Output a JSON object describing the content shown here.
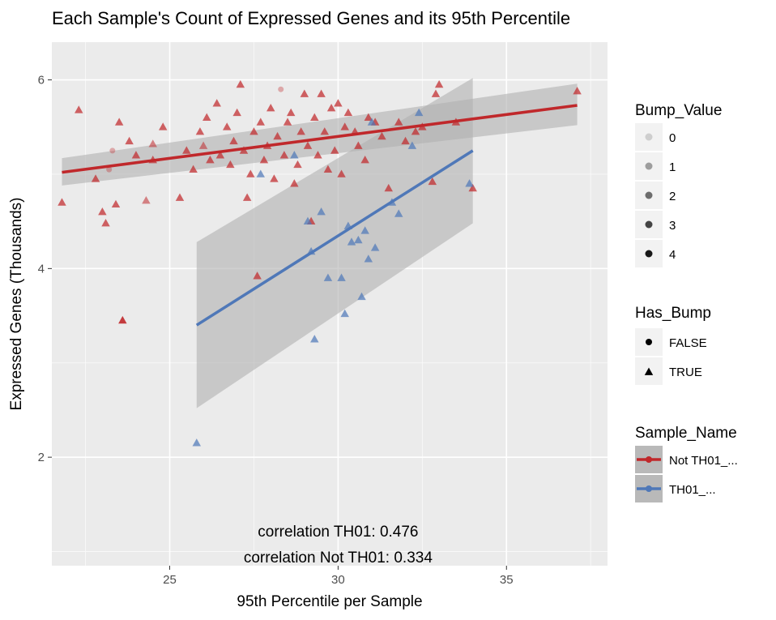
{
  "chart_data": {
    "type": "scatter",
    "title": "Each Sample's Count of Expressed Genes and its 95th Percentile",
    "xlabel": "95th Percentile per Sample",
    "ylabel": "Expressed Genes (Thousands)",
    "xlim": [
      21.5,
      38.0
    ],
    "ylim": [
      0.85,
      6.4
    ],
    "x_ticks": [
      25,
      30,
      35
    ],
    "y_ticks": [
      2,
      4,
      6
    ],
    "grid": true,
    "background": "#ebebeb",
    "legend_position": "right",
    "annotations": [
      "correlation TH01: 0.476",
      "correlation Not TH01: 0.334"
    ],
    "legends": {
      "bump_value": {
        "title": "Bump_Value",
        "items": [
          "0",
          "1",
          "2",
          "3",
          "4"
        ]
      },
      "has_bump": {
        "title": "Has_Bump",
        "items": [
          "FALSE",
          "TRUE"
        ]
      },
      "sample_name": {
        "title": "Sample_Name",
        "items": [
          "Not TH01_...",
          "TH01_..."
        ]
      }
    },
    "colors": {
      "not_th01": "#c0282b",
      "th01": "#4f78b8",
      "ribbon": "#b0b0b0"
    },
    "series": [
      {
        "name": "Not TH01_...",
        "color": "#c0282b",
        "fit": {
          "x": [
            21.8,
            37.1
          ],
          "y": [
            5.02,
            5.73
          ],
          "ci_lower": [
            4.88,
            5.52
          ],
          "ci_upper": [
            5.17,
            5.96
          ]
        },
        "points": [
          [
            21.8,
            4.7,
            "T",
            3
          ],
          [
            22.3,
            5.68,
            "T",
            3
          ],
          [
            22.8,
            4.95,
            "T",
            3
          ],
          [
            23.0,
            4.6,
            "T",
            3
          ],
          [
            23.1,
            4.48,
            "T",
            3
          ],
          [
            23.2,
            5.05,
            "C",
            1
          ],
          [
            23.3,
            5.25,
            "C",
            1
          ],
          [
            23.4,
            4.68,
            "T",
            3
          ],
          [
            23.5,
            5.55,
            "T",
            3
          ],
          [
            23.6,
            3.45,
            "T",
            4
          ],
          [
            23.8,
            5.35,
            "T",
            3
          ],
          [
            24.0,
            5.2,
            "T",
            3
          ],
          [
            24.3,
            4.72,
            "T",
            2
          ],
          [
            24.5,
            5.15,
            "T",
            3
          ],
          [
            24.5,
            5.32,
            "T",
            2
          ],
          [
            24.8,
            5.5,
            "T",
            3
          ],
          [
            25.3,
            4.75,
            "T",
            3
          ],
          [
            25.5,
            5.25,
            "T",
            3
          ],
          [
            25.7,
            5.05,
            "T",
            3
          ],
          [
            25.9,
            5.45,
            "T",
            3
          ],
          [
            26.0,
            5.3,
            "T",
            2
          ],
          [
            26.1,
            5.6,
            "T",
            3
          ],
          [
            26.2,
            5.15,
            "T",
            3
          ],
          [
            26.4,
            5.75,
            "T",
            3
          ],
          [
            26.5,
            5.2,
            "T",
            3
          ],
          [
            26.7,
            5.5,
            "T",
            3
          ],
          [
            26.8,
            5.1,
            "T",
            3
          ],
          [
            26.9,
            5.35,
            "T",
            3
          ],
          [
            27.0,
            5.65,
            "T",
            3
          ],
          [
            27.1,
            5.95,
            "T",
            3
          ],
          [
            27.2,
            5.25,
            "T",
            3
          ],
          [
            27.3,
            4.75,
            "T",
            3
          ],
          [
            27.4,
            5.0,
            "T",
            3
          ],
          [
            27.5,
            5.45,
            "T",
            3
          ],
          [
            27.6,
            3.92,
            "T",
            3
          ],
          [
            27.7,
            5.55,
            "T",
            3
          ],
          [
            27.8,
            5.15,
            "T",
            3
          ],
          [
            27.9,
            5.3,
            "T",
            3
          ],
          [
            28.0,
            5.7,
            "T",
            3
          ],
          [
            28.1,
            4.95,
            "T",
            3
          ],
          [
            28.2,
            5.4,
            "T",
            3
          ],
          [
            28.3,
            5.9,
            "C",
            1
          ],
          [
            28.4,
            5.2,
            "T",
            3
          ],
          [
            28.5,
            5.55,
            "T",
            3
          ],
          [
            28.6,
            5.65,
            "T",
            3
          ],
          [
            28.7,
            4.9,
            "T",
            3
          ],
          [
            28.8,
            5.1,
            "T",
            3
          ],
          [
            28.9,
            5.45,
            "T",
            3
          ],
          [
            29.0,
            5.85,
            "T",
            3
          ],
          [
            29.1,
            5.3,
            "T",
            3
          ],
          [
            29.2,
            4.5,
            "T",
            3
          ],
          [
            29.3,
            5.6,
            "T",
            3
          ],
          [
            29.4,
            5.2,
            "T",
            3
          ],
          [
            29.5,
            5.85,
            "T",
            3
          ],
          [
            29.6,
            5.45,
            "T",
            3
          ],
          [
            29.7,
            5.05,
            "T",
            3
          ],
          [
            29.8,
            5.7,
            "T",
            3
          ],
          [
            29.9,
            5.25,
            "T",
            3
          ],
          [
            30.0,
            5.75,
            "T",
            3
          ],
          [
            30.1,
            5.0,
            "T",
            3
          ],
          [
            30.2,
            5.5,
            "T",
            3
          ],
          [
            30.3,
            5.65,
            "T",
            3
          ],
          [
            30.5,
            5.45,
            "T",
            3
          ],
          [
            30.6,
            5.3,
            "T",
            3
          ],
          [
            30.8,
            5.15,
            "T",
            3
          ],
          [
            30.9,
            5.6,
            "T",
            3
          ],
          [
            31.1,
            5.55,
            "T",
            3
          ],
          [
            31.3,
            5.4,
            "T",
            3
          ],
          [
            31.5,
            4.85,
            "T",
            3
          ],
          [
            31.8,
            5.55,
            "T",
            3
          ],
          [
            32.0,
            5.35,
            "T",
            3
          ],
          [
            32.3,
            5.45,
            "T",
            3
          ],
          [
            32.5,
            5.5,
            "T",
            3
          ],
          [
            32.8,
            4.92,
            "T",
            3
          ],
          [
            32.9,
            5.85,
            "T",
            3
          ],
          [
            33.0,
            5.95,
            "T",
            3
          ],
          [
            33.5,
            5.55,
            "T",
            3
          ],
          [
            34.0,
            4.85,
            "T",
            3
          ],
          [
            37.1,
            5.88,
            "T",
            3
          ]
        ]
      },
      {
        "name": "TH01_...",
        "color": "#4f78b8",
        "fit": {
          "x": [
            25.8,
            34.0
          ],
          "y": [
            3.4,
            5.25
          ],
          "ci_lower": [
            2.52,
            4.48
          ],
          "ci_upper": [
            4.28,
            6.02
          ]
        },
        "points": [
          [
            25.8,
            2.15,
            "T",
            3
          ],
          [
            27.7,
            5.0,
            "T",
            3
          ],
          [
            28.7,
            5.2,
            "T",
            3
          ],
          [
            29.1,
            4.5,
            "T",
            3
          ],
          [
            29.2,
            4.18,
            "T",
            3
          ],
          [
            29.3,
            3.25,
            "T",
            3
          ],
          [
            29.5,
            4.6,
            "T",
            3
          ],
          [
            29.7,
            3.9,
            "T",
            3
          ],
          [
            30.1,
            3.9,
            "T",
            3
          ],
          [
            30.2,
            3.52,
            "T",
            3
          ],
          [
            30.3,
            4.45,
            "T",
            3
          ],
          [
            30.4,
            4.28,
            "T",
            3
          ],
          [
            30.6,
            4.3,
            "T",
            3
          ],
          [
            30.7,
            3.7,
            "T",
            3
          ],
          [
            30.8,
            4.4,
            "T",
            3
          ],
          [
            30.9,
            4.1,
            "T",
            3
          ],
          [
            31.0,
            5.55,
            "T",
            3
          ],
          [
            31.1,
            4.22,
            "T",
            3
          ],
          [
            31.6,
            4.7,
            "T",
            3
          ],
          [
            31.8,
            4.58,
            "T",
            3
          ],
          [
            32.2,
            5.3,
            "T",
            3
          ],
          [
            32.4,
            5.65,
            "T",
            3
          ],
          [
            33.9,
            4.9,
            "T",
            3
          ]
        ]
      }
    ]
  }
}
